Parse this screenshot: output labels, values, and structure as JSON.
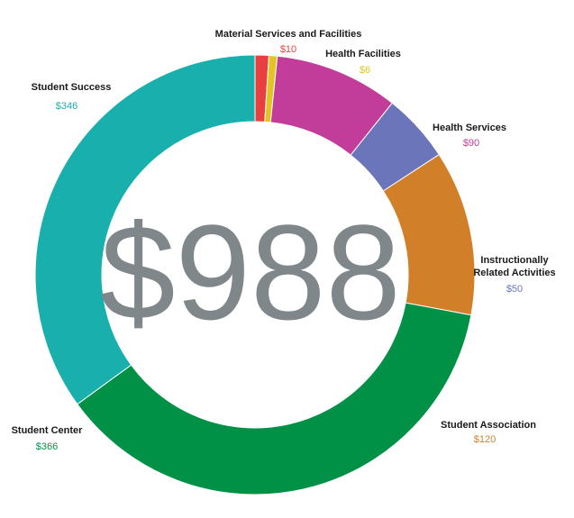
{
  "chart_data": {
    "type": "pie",
    "variant": "donut",
    "total_label": "$988",
    "slices": [
      {
        "name": "Material Services and Facilities",
        "value": 10,
        "value_label": "$10",
        "color": "#e84040"
      },
      {
        "name": "Health Facilities",
        "value": 6,
        "value_label": "$6",
        "color": "#e2c424"
      },
      {
        "name": "Health Services",
        "value": 90,
        "value_label": "$90",
        "color": "#c13d99"
      },
      {
        "name": "Instructionally Related Activities",
        "value": 50,
        "value_label": "$50",
        "color": "#6b75b9"
      },
      {
        "name": "Student Association",
        "value": 120,
        "value_label": "$120",
        "color": "#d18029"
      },
      {
        "name": "Student Center",
        "value": 366,
        "value_label": "$366",
        "color": "#009147"
      },
      {
        "name": "Student Success",
        "value": 346,
        "value_label": "$346",
        "color": "#18afac"
      }
    ]
  }
}
